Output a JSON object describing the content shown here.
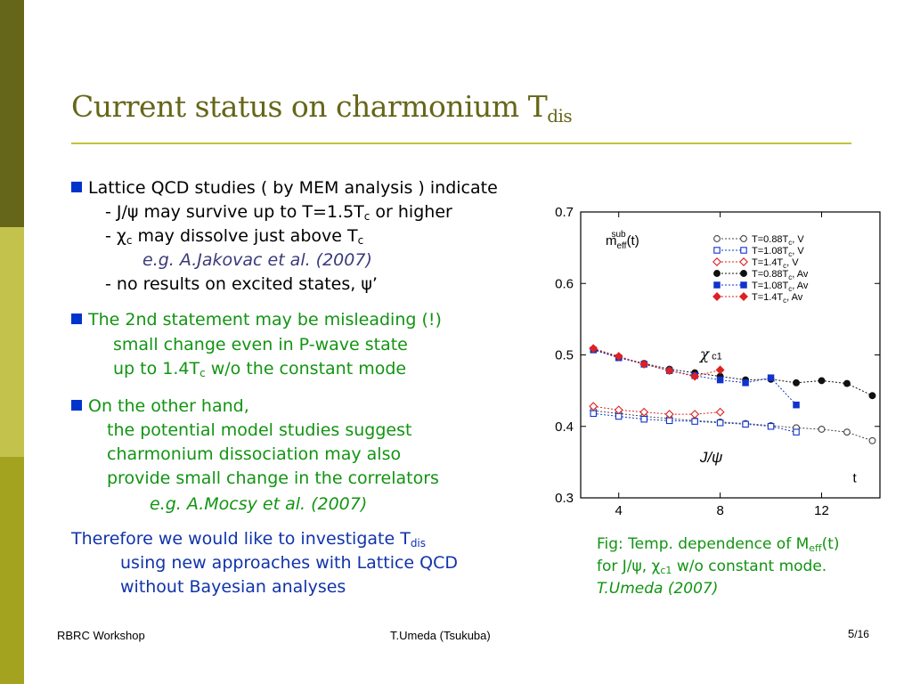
{
  "slide": {
    "title_main": "Current status on charmonium T",
    "title_sub": "dis",
    "b1": {
      "head": "Lattice QCD studies ( by MEM analysis ) indicate",
      "l1_pre": "- J/ψ may survive up to T=1.5T",
      "l1_sub": "c",
      "l1_post": " or higher",
      "l2_pre": "- χ",
      "l2_sub": "c",
      "l2_mid": " may dissolve just above T",
      "l2_sub2": "c",
      "ref": "e.g. A.Jakovac et al. (2007)",
      "l3": "- no results on excited states, ψ’"
    },
    "b2": {
      "head": "The 2nd statement may be misleading (!)",
      "l1": "small change even in P-wave state",
      "l2_pre": "up to 1.4T",
      "l2_sub": "c",
      "l2_post": " w/o the constant mode"
    },
    "b3": {
      "head": "On the other hand,",
      "l1": "the potential model studies suggest",
      "l2": "charmonium dissociation may also",
      "l3": "provide small change in the correlators",
      "ref": "e.g. A.Mocsy et al. (2007)"
    },
    "therefore": {
      "l1_pre": "Therefore we would like to investigate T",
      "l1_sub": "dis",
      "l2": "using new approaches with Lattice QCD",
      "l3": "without Bayesian analyses"
    },
    "caption": {
      "l1_pre": "Fig: Temp. dependence of M",
      "l1_sub": "eff",
      "l1_post": "(t)",
      "l2_pre": "for J/ψ, χ",
      "l2_sub": "c1",
      "l2_post": " w/o constant mode.",
      "l3": "T.Umeda (2007)"
    },
    "footer": {
      "left": "RBRC Workshop",
      "center": "T.Umeda (Tsukuba)",
      "page": "5",
      "total": "/16"
    }
  },
  "chart_data": {
    "type": "scatter",
    "ylabel_main": "m",
    "ylabel_sub": "eff",
    "ylabel_sup": "sub",
    "ylabel_tail": "(t)",
    "xlabel": "t",
    "xlim": [
      2.5,
      14.3
    ],
    "ylim": [
      0.3,
      0.7
    ],
    "xticks": [
      4,
      8,
      12
    ],
    "yticks": [
      0.3,
      0.4,
      0.5,
      0.6,
      0.7
    ],
    "annotations": {
      "chi": "χ",
      "chi_sub": "c1",
      "jpsi": "J/ψ"
    },
    "series": [
      {
        "name": "T=0.88T",
        "name_sub": "c",
        "name_tail": ", V",
        "color": "#444444",
        "marker": "circle-open",
        "group": "jpsi",
        "points": [
          [
            3,
            0.422
          ],
          [
            4,
            0.418
          ],
          [
            5,
            0.414
          ],
          [
            6,
            0.411
          ],
          [
            7,
            0.408
          ],
          [
            8,
            0.406
          ],
          [
            9,
            0.404
          ],
          [
            10,
            0.401
          ],
          [
            11,
            0.398
          ],
          [
            12,
            0.396
          ],
          [
            13,
            0.392
          ],
          [
            14,
            0.38
          ]
        ]
      },
      {
        "name": "T=1.08T",
        "name_sub": "c",
        "name_tail": ", V",
        "color": "#1133cc",
        "marker": "square-open",
        "group": "jpsi",
        "points": [
          [
            3,
            0.418
          ],
          [
            4,
            0.414
          ],
          [
            5,
            0.41
          ],
          [
            6,
            0.408
          ],
          [
            7,
            0.407
          ],
          [
            8,
            0.405
          ],
          [
            9,
            0.403
          ],
          [
            10,
            0.4
          ],
          [
            11,
            0.392
          ]
        ]
      },
      {
        "name": "T=1.4T",
        "name_sub": "c",
        "name_tail": ", V",
        "color": "#dd2222",
        "marker": "diamond-open",
        "group": "jpsi",
        "points": [
          [
            3,
            0.428
          ],
          [
            4,
            0.423
          ],
          [
            5,
            0.42
          ],
          [
            6,
            0.417
          ],
          [
            7,
            0.417
          ],
          [
            8,
            0.42
          ]
        ]
      },
      {
        "name": "T=0.88T",
        "name_sub": "c",
        "name_tail": ", Av",
        "color": "#111111",
        "marker": "circle-filled",
        "group": "chi",
        "points": [
          [
            3,
            0.508
          ],
          [
            4,
            0.497
          ],
          [
            5,
            0.488
          ],
          [
            6,
            0.48
          ],
          [
            7,
            0.475
          ],
          [
            8,
            0.47
          ],
          [
            9,
            0.465
          ],
          [
            10,
            0.466
          ],
          [
            11,
            0.461
          ],
          [
            12,
            0.464
          ],
          [
            13,
            0.46
          ],
          [
            14,
            0.443
          ]
        ]
      },
      {
        "name": "T=1.08T",
        "name_sub": "c",
        "name_tail": ", Av",
        "color": "#1133cc",
        "marker": "square-filled",
        "group": "chi",
        "points": [
          [
            3,
            0.507
          ],
          [
            4,
            0.496
          ],
          [
            5,
            0.487
          ],
          [
            6,
            0.478
          ],
          [
            7,
            0.471
          ],
          [
            8,
            0.465
          ],
          [
            9,
            0.461
          ],
          [
            10,
            0.468
          ],
          [
            11,
            0.43
          ]
        ]
      },
      {
        "name": "T=1.4T",
        "name_sub": "c",
        "name_tail": ", Av",
        "color": "#dd2222",
        "marker": "diamond-filled",
        "group": "chi",
        "points": [
          [
            3,
            0.509
          ],
          [
            4,
            0.498
          ],
          [
            5,
            0.487
          ],
          [
            6,
            0.478
          ],
          [
            7,
            0.47
          ],
          [
            8,
            0.479
          ]
        ]
      }
    ]
  }
}
